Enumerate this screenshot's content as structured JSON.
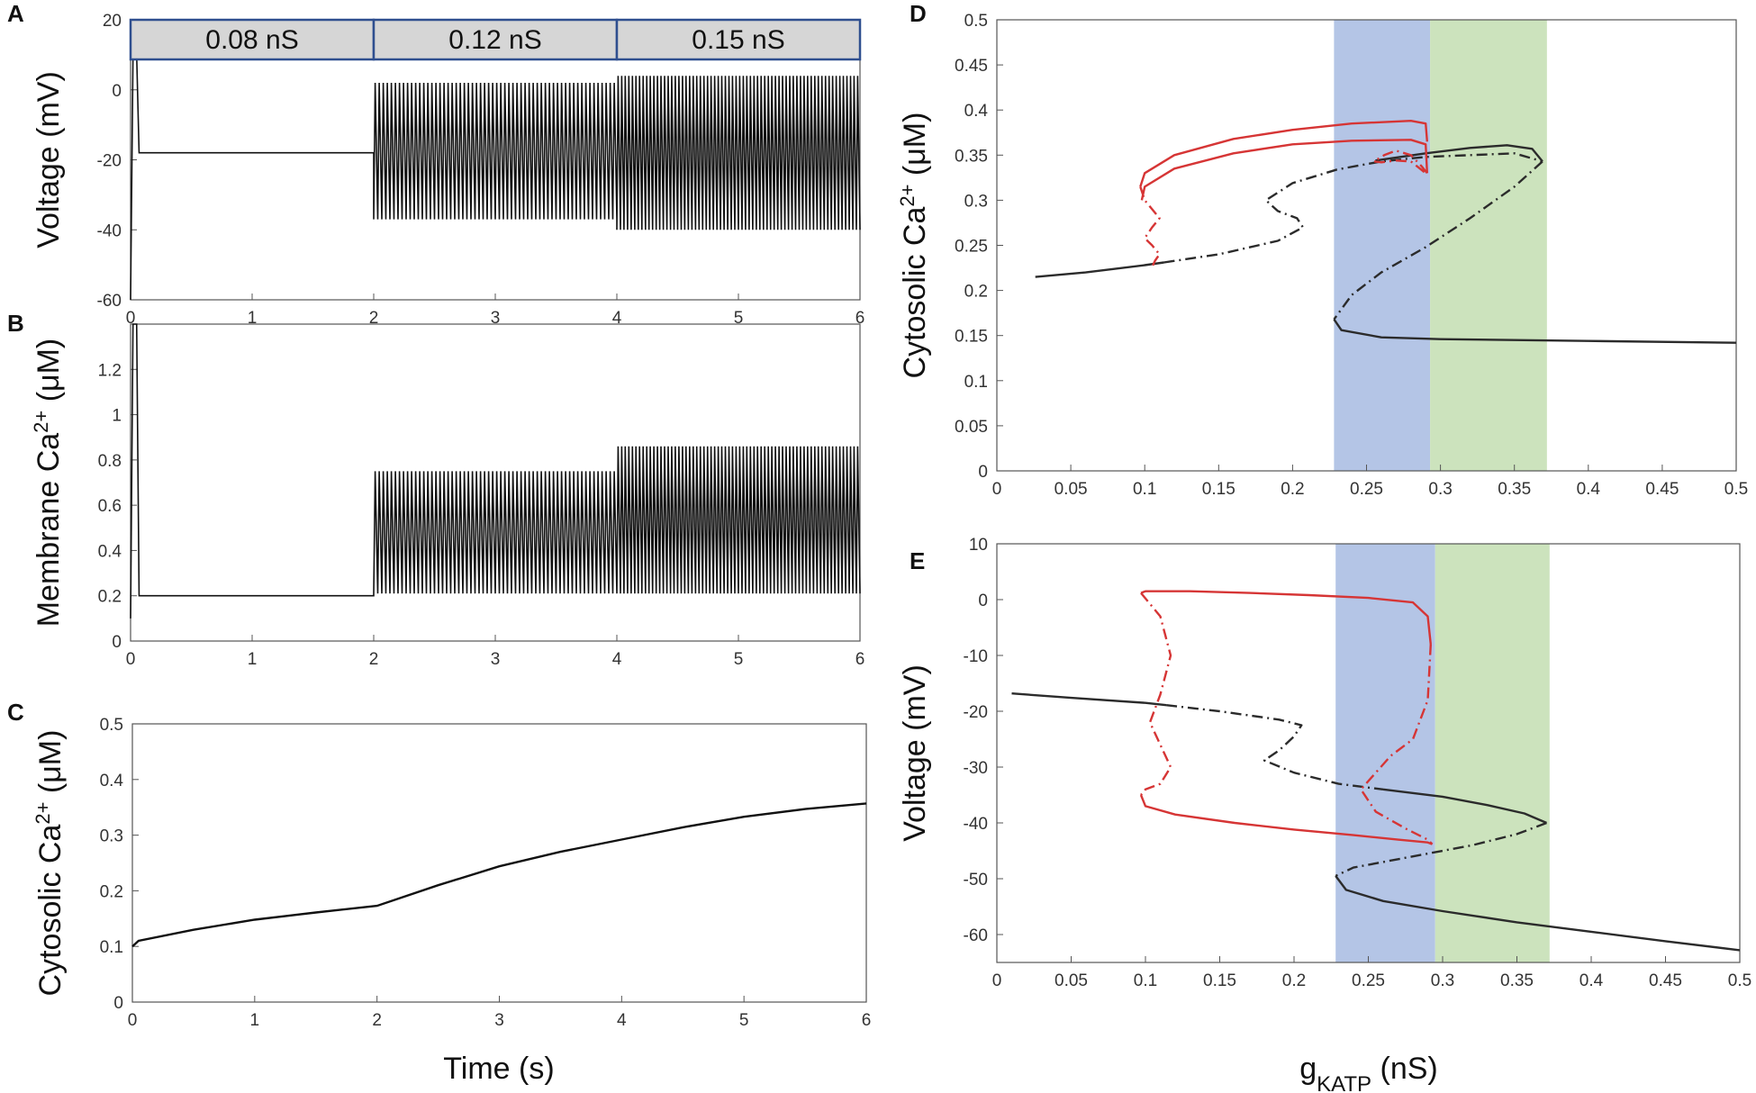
{
  "figure": {
    "panel_letters": [
      "A",
      "B",
      "C",
      "D",
      "E"
    ],
    "shared_xlabel_left": "Time (s)",
    "shared_xlabel_right": "g",
    "shared_xlabel_right_sub": "KATP",
    "shared_xlabel_right_unit": " (nS)"
  },
  "colors": {
    "trace": "#111111",
    "stable_branch": "#2b2b2b",
    "periodic_branch": "#d63535",
    "blue_band": "#b4c5e6",
    "green_band": "#cce3bd",
    "conductance_box_fill": "#d6d6d6",
    "conductance_box_border": "#2f4f8f"
  },
  "chart_data": [
    {
      "id": "A",
      "type": "line",
      "title": "",
      "xlabel": "",
      "ylabel": "Voltage (mV)",
      "xlim": [
        0,
        6
      ],
      "ylim": [
        -60,
        20
      ],
      "xticks": [
        0,
        1,
        2,
        3,
        4,
        5,
        6
      ],
      "yticks": [
        -60,
        -40,
        -20,
        0,
        20
      ],
      "conductance_steps": [
        {
          "label": "0.08 nS",
          "t_start": 0,
          "t_end": 2
        },
        {
          "label": "0.12 nS",
          "t_start": 2,
          "t_end": 4
        },
        {
          "label": "0.15 nS",
          "t_start": 4,
          "t_end": 6
        }
      ],
      "segments": [
        {
          "t_start": 0,
          "t_end": 2,
          "pattern": "steady",
          "value": -18,
          "initial": -60,
          "initial_peak": 10
        },
        {
          "t_start": 2,
          "t_end": 4,
          "pattern": "oscillation",
          "max": 2,
          "min": -37,
          "cycles": 60
        },
        {
          "t_start": 4,
          "t_end": 6,
          "pattern": "oscillation",
          "max": 4,
          "min": -40,
          "cycles": 68
        }
      ]
    },
    {
      "id": "B",
      "type": "line",
      "title": "",
      "xlabel": "",
      "ylabel": "Membrane Ca",
      "ylabel_sup": "2+",
      "ylabel_unit": " (μM)",
      "xlim": [
        0,
        6
      ],
      "ylim": [
        0,
        1.4
      ],
      "xticks": [
        0,
        1,
        2,
        3,
        4,
        5,
        6
      ],
      "yticks": [
        0,
        0.2,
        0.4,
        0.6,
        0.8,
        1,
        1.2
      ],
      "segments": [
        {
          "t_start": 0,
          "t_end": 2,
          "pattern": "steady",
          "value": 0.2,
          "initial": 0.1,
          "initial_peak": 1.4
        },
        {
          "t_start": 2,
          "t_end": 4,
          "pattern": "oscillation",
          "max": 0.75,
          "min": 0.21,
          "cycles": 60
        },
        {
          "t_start": 4,
          "t_end": 6,
          "pattern": "oscillation",
          "max": 0.86,
          "min": 0.21,
          "cycles": 68
        }
      ]
    },
    {
      "id": "C",
      "type": "line",
      "title": "",
      "xlabel": "",
      "ylabel": "Cytosolic Ca",
      "ylabel_sup": "2+",
      "ylabel_unit": " (μM)",
      "xlim": [
        0,
        6
      ],
      "ylim": [
        0,
        0.5
      ],
      "xticks": [
        0,
        1,
        2,
        3,
        4,
        5,
        6
      ],
      "yticks": [
        0,
        0.1,
        0.2,
        0.3,
        0.4,
        0.5
      ],
      "series": [
        {
          "name": "cytosolic Ca",
          "x": [
            0,
            0.05,
            0.5,
            1,
            1.5,
            2,
            2.5,
            3,
            3.5,
            4,
            4.5,
            5,
            5.5,
            6
          ],
          "y": [
            0.1,
            0.11,
            0.13,
            0.148,
            0.161,
            0.173,
            0.21,
            0.244,
            0.27,
            0.292,
            0.314,
            0.333,
            0.347,
            0.357
          ]
        }
      ]
    },
    {
      "id": "D",
      "type": "line",
      "title": "",
      "xlabel": "",
      "ylabel": "Cytosolic Ca",
      "ylabel_sup": "2+",
      "ylabel_unit": " (μM)",
      "xlim": [
        0,
        0.5
      ],
      "ylim": [
        0,
        0.5
      ],
      "xticks": [
        0,
        0.05,
        0.1,
        0.15,
        0.2,
        0.25,
        0.3,
        0.35,
        0.4,
        0.45,
        0.5
      ],
      "yticks": [
        0,
        0.05,
        0.1,
        0.15,
        0.2,
        0.25,
        0.3,
        0.35,
        0.4,
        0.45,
        0.5
      ],
      "bands": [
        {
          "x0": 0.228,
          "x1": 0.293,
          "color": "blue"
        },
        {
          "x0": 0.293,
          "x1": 0.372,
          "color": "green"
        }
      ],
      "series": [
        {
          "name": "steady state stable lower-left",
          "color": "black",
          "style": "solid",
          "x": [
            0.026,
            0.06,
            0.1,
            0.113
          ],
          "y": [
            0.215,
            0.22,
            0.228,
            0.231
          ]
        },
        {
          "name": "steady state unstable",
          "color": "black",
          "style": "dashdot",
          "x": [
            0.113,
            0.15,
            0.19,
            0.207,
            0.203,
            0.19,
            0.182,
            0.2,
            0.23,
            0.26,
            0.29,
            0.32,
            0.35,
            0.369
          ],
          "y": [
            0.231,
            0.24,
            0.255,
            0.27,
            0.28,
            0.288,
            0.3,
            0.319,
            0.334,
            0.343,
            0.348,
            0.35,
            0.352,
            0.343
          ]
        },
        {
          "name": "steady state stable upper",
          "color": "black",
          "style": "solid",
          "x": [
            0.256,
            0.29,
            0.32,
            0.345,
            0.362,
            0.369
          ],
          "y": [
            0.344,
            0.352,
            0.358,
            0.361,
            0.357,
            0.343
          ]
        },
        {
          "name": "steady state unstable middle",
          "color": "black",
          "style": "dashdot",
          "x": [
            0.369,
            0.35,
            0.32,
            0.29,
            0.26,
            0.24,
            0.228
          ],
          "y": [
            0.343,
            0.315,
            0.28,
            0.248,
            0.22,
            0.195,
            0.168
          ]
        },
        {
          "name": "steady state stable lower-right",
          "color": "black",
          "style": "solid",
          "x": [
            0.228,
            0.233,
            0.26,
            0.3,
            0.4,
            0.5
          ],
          "y": [
            0.168,
            0.156,
            0.148,
            0.146,
            0.144,
            0.142
          ]
        },
        {
          "name": "periodic max stable",
          "color": "red",
          "style": "solid",
          "x": [
            0.097,
            0.1,
            0.12,
            0.16,
            0.2,
            0.24,
            0.28,
            0.29,
            0.291
          ],
          "y": [
            0.315,
            0.33,
            0.35,
            0.368,
            0.378,
            0.385,
            0.388,
            0.385,
            0.365
          ]
        },
        {
          "name": "periodic min stable",
          "color": "red",
          "style": "solid",
          "x": [
            0.098,
            0.1,
            0.12,
            0.16,
            0.2,
            0.24,
            0.28,
            0.29,
            0.291
          ],
          "y": [
            0.3,
            0.315,
            0.335,
            0.352,
            0.362,
            0.366,
            0.367,
            0.362,
            0.33
          ]
        },
        {
          "name": "periodic unstable left",
          "color": "red",
          "style": "dashdot",
          "x": [
            0.097,
            0.1,
            0.105,
            0.11,
            0.105,
            0.1,
            0.105,
            0.11,
            0.107,
            0.105
          ],
          "y": [
            0.315,
            0.3,
            0.29,
            0.28,
            0.27,
            0.258,
            0.25,
            0.24,
            0.233,
            0.226
          ]
        },
        {
          "name": "periodic unstable right",
          "color": "red",
          "style": "dashdot",
          "x": [
            0.291,
            0.287,
            0.28,
            0.27,
            0.262,
            0.255,
            0.26,
            0.27,
            0.28,
            0.29
          ],
          "y": [
            0.33,
            0.338,
            0.35,
            0.355,
            0.35,
            0.343,
            0.342,
            0.344,
            0.343,
            0.33
          ]
        }
      ]
    },
    {
      "id": "E",
      "type": "line",
      "title": "",
      "xlabel": "",
      "ylabel": "Voltage (mV)",
      "xlim": [
        0,
        0.5
      ],
      "ylim": [
        -65,
        10
      ],
      "xticks": [
        0,
        0.05,
        0.1,
        0.15,
        0.2,
        0.25,
        0.3,
        0.35,
        0.4,
        0.45,
        0.5
      ],
      "yticks": [
        -60,
        -50,
        -40,
        -30,
        -20,
        -10,
        0,
        10
      ],
      "bands": [
        {
          "x0": 0.228,
          "x1": 0.295,
          "color": "blue"
        },
        {
          "x0": 0.295,
          "x1": 0.372,
          "color": "green"
        }
      ],
      "series": [
        {
          "name": "steady state stable upper-left",
          "color": "black",
          "style": "solid",
          "x": [
            0.01,
            0.05,
            0.1,
            0.114
          ],
          "y": [
            -16.8,
            -17.6,
            -18.5,
            -18.9
          ]
        },
        {
          "name": "steady state unstable",
          "color": "black",
          "style": "dashdot",
          "x": [
            0.114,
            0.15,
            0.19,
            0.205,
            0.2,
            0.19,
            0.18,
            0.2,
            0.23,
            0.26
          ],
          "y": [
            -18.9,
            -20,
            -21.5,
            -22.5,
            -24.5,
            -27,
            -28.8,
            -31,
            -33,
            -34
          ]
        },
        {
          "name": "steady state stable middle",
          "color": "black",
          "style": "solid",
          "x": [
            0.26,
            0.3,
            0.33,
            0.355,
            0.37
          ],
          "y": [
            -34,
            -35.3,
            -36.8,
            -38.3,
            -40
          ]
        },
        {
          "name": "steady state unstable lower",
          "color": "black",
          "style": "dashdot",
          "x": [
            0.37,
            0.35,
            0.32,
            0.29,
            0.26,
            0.24,
            0.228
          ],
          "y": [
            -40,
            -42,
            -44,
            -45.5,
            -47,
            -48,
            -49.5
          ]
        },
        {
          "name": "steady state stable lower",
          "color": "black",
          "style": "solid",
          "x": [
            0.228,
            0.235,
            0.26,
            0.3,
            0.35,
            0.4,
            0.45,
            0.5
          ],
          "y": [
            -49.5,
            -52,
            -54,
            -55.8,
            -57.8,
            -59.5,
            -61.2,
            -62.8
          ]
        },
        {
          "name": "periodic max",
          "color": "red",
          "style": "solid",
          "x": [
            0.097,
            0.1,
            0.13,
            0.17,
            0.21,
            0.25,
            0.28,
            0.29,
            0.292
          ],
          "y": [
            1.2,
            1.5,
            1.5,
            1.2,
            0.8,
            0.3,
            -0.5,
            -3,
            -8
          ]
        },
        {
          "name": "periodic min",
          "color": "red",
          "style": "solid",
          "x": [
            0.097,
            0.1,
            0.12,
            0.16,
            0.2,
            0.24,
            0.27,
            0.29,
            0.293
          ],
          "y": [
            -35,
            -37,
            -38.5,
            -40,
            -41.2,
            -42.2,
            -43,
            -43.5,
            -43.8
          ]
        },
        {
          "name": "periodic unstable left",
          "color": "red",
          "style": "dashdot",
          "x": [
            0.097,
            0.11,
            0.117,
            0.11,
            0.103,
            0.11,
            0.117,
            0.11,
            0.1,
            0.097
          ],
          "y": [
            1.2,
            -3,
            -10,
            -17,
            -22,
            -26,
            -30,
            -33,
            -34,
            -35
          ]
        },
        {
          "name": "periodic unstable right",
          "color": "red",
          "style": "dashdot",
          "x": [
            0.292,
            0.29,
            0.28,
            0.265,
            0.255,
            0.245,
            0.255,
            0.275,
            0.29,
            0.293
          ],
          "y": [
            -8,
            -18,
            -25,
            -28,
            -31,
            -34,
            -38,
            -41,
            -43,
            -43.8
          ]
        }
      ]
    }
  ]
}
